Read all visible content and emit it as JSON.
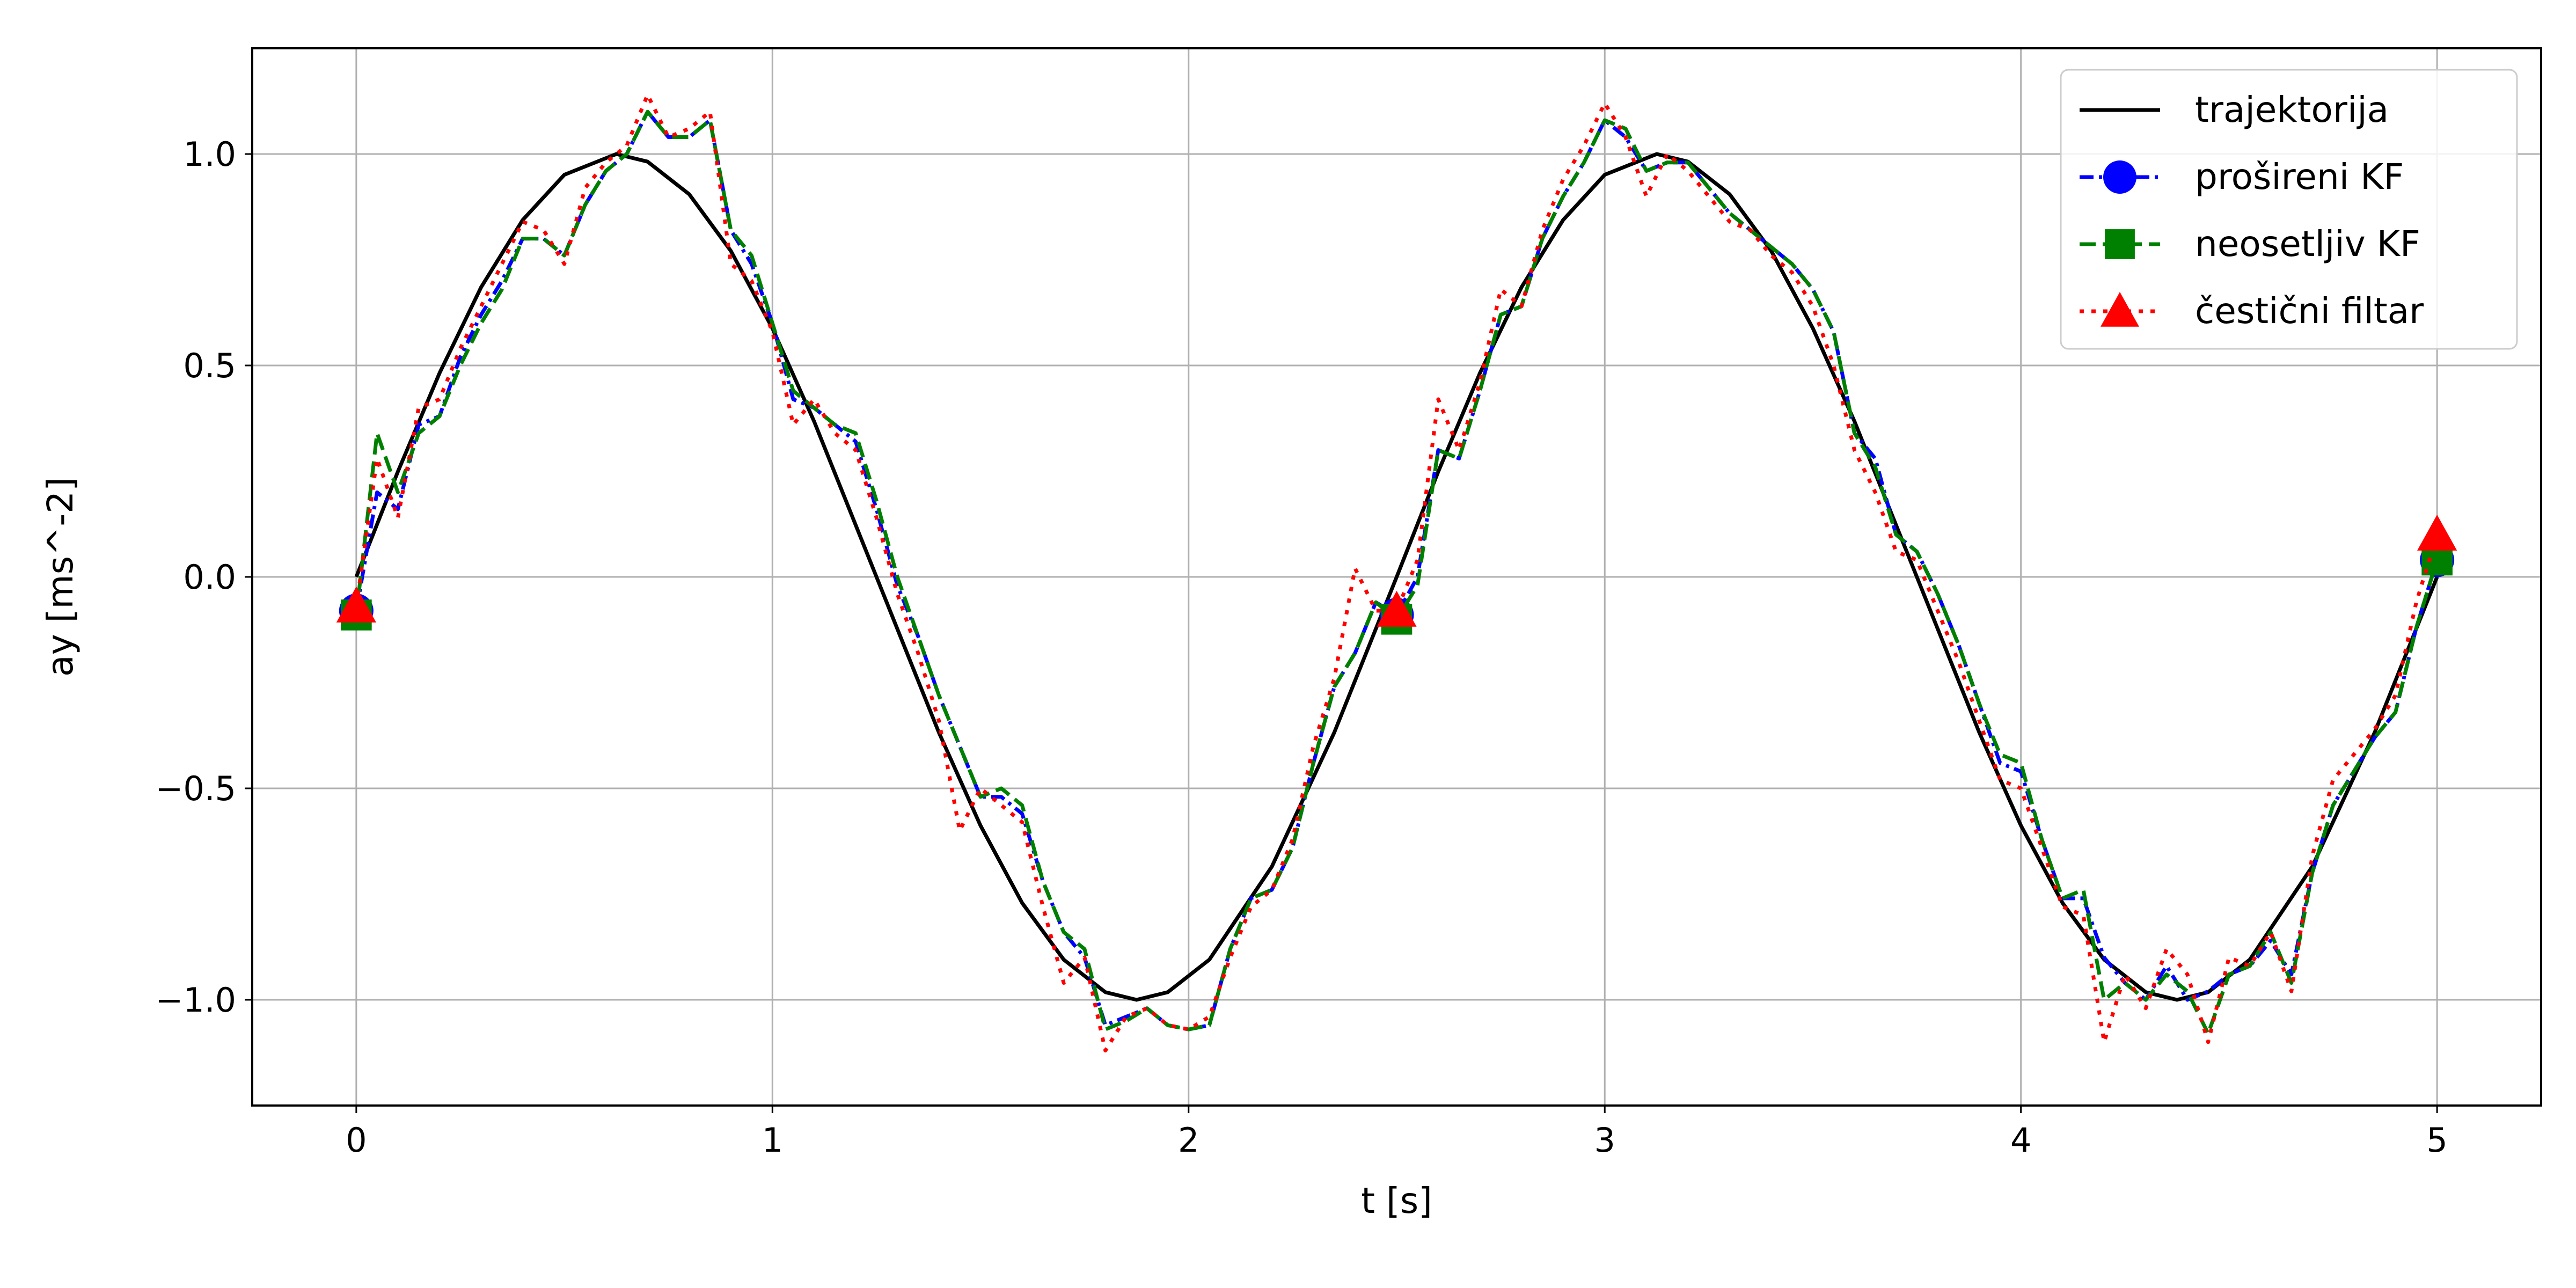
{
  "chart_data": {
    "type": "line",
    "xlabel": "t [s]",
    "ylabel": "ay [ms^-2]",
    "xlim": [
      -0.25,
      5.25
    ],
    "ylim": [
      -1.25,
      1.25
    ],
    "xticks": [
      0,
      1,
      2,
      3,
      4,
      5
    ],
    "xtick_labels": [
      "0",
      "1",
      "2",
      "3",
      "4",
      "5"
    ],
    "yticks": [
      -1.0,
      -0.5,
      0.0,
      0.5,
      1.0
    ],
    "ytick_labels": [
      "−1.0",
      "−0.5",
      "0.0",
      "0.5",
      "1.0"
    ],
    "grid": true,
    "legend_position": "top-right",
    "series": [
      {
        "name": "trajektorija",
        "color": "#000000",
        "style": "solid",
        "marker": "none",
        "x": [
          0,
          0.1,
          0.2,
          0.3,
          0.4,
          0.5,
          0.625,
          0.7,
          0.8,
          0.9,
          1.0,
          1.1,
          1.25,
          1.4,
          1.5,
          1.6,
          1.7,
          1.8,
          1.875,
          1.95,
          2.05,
          2.2,
          2.35,
          2.5,
          2.6,
          2.7,
          2.8,
          2.9,
          3.0,
          3.125,
          3.2,
          3.3,
          3.4,
          3.5,
          3.6,
          3.75,
          3.9,
          4.0,
          4.1,
          4.2,
          4.3,
          4.375,
          4.45,
          4.55,
          4.7,
          4.85,
          5.0
        ],
        "y": [
          0.0,
          0.249,
          0.482,
          0.685,
          0.844,
          0.951,
          1.0,
          0.982,
          0.905,
          0.771,
          0.588,
          0.368,
          0.0,
          -0.368,
          -0.588,
          -0.771,
          -0.905,
          -0.982,
          -1.0,
          -0.982,
          -0.905,
          -0.685,
          -0.368,
          0.0,
          0.249,
          0.482,
          0.685,
          0.844,
          0.951,
          1.0,
          0.982,
          0.905,
          0.771,
          0.588,
          0.368,
          0.0,
          -0.368,
          -0.588,
          -0.771,
          -0.905,
          -0.982,
          -1.0,
          -0.982,
          -0.905,
          -0.685,
          -0.368,
          0.0
        ]
      },
      {
        "name": "prošireni KF",
        "color": "#0000ff",
        "style": "dashdot",
        "marker": "circle",
        "x": [
          0,
          0.05,
          0.1,
          0.15,
          0.2,
          0.25,
          0.3,
          0.35,
          0.4,
          0.45,
          0.5,
          0.55,
          0.6,
          0.65,
          0.7,
          0.75,
          0.8,
          0.85,
          0.9,
          0.95,
          1.0,
          1.05,
          1.1,
          1.15,
          1.2,
          1.25,
          1.3,
          1.35,
          1.4,
          1.45,
          1.5,
          1.55,
          1.6,
          1.65,
          1.7,
          1.75,
          1.8,
          1.85,
          1.9,
          1.95,
          2.0,
          2.05,
          2.1,
          2.15,
          2.2,
          2.25,
          2.3,
          2.35,
          2.4,
          2.45,
          2.5,
          2.55,
          2.6,
          2.65,
          2.7,
          2.75,
          2.8,
          2.85,
          2.9,
          2.95,
          3.0,
          3.05,
          3.1,
          3.15,
          3.2,
          3.25,
          3.3,
          3.35,
          3.4,
          3.45,
          3.5,
          3.55,
          3.6,
          3.65,
          3.7,
          3.75,
          3.8,
          3.85,
          3.9,
          3.95,
          4.0,
          4.05,
          4.1,
          4.15,
          4.2,
          4.25,
          4.3,
          4.35,
          4.4,
          4.45,
          4.5,
          4.55,
          4.6,
          4.65,
          4.7,
          4.75,
          4.8,
          4.85,
          4.9,
          4.95,
          5.0
        ],
        "y": [
          -0.08,
          0.2,
          0.16,
          0.36,
          0.38,
          0.52,
          0.62,
          0.7,
          0.8,
          0.8,
          0.76,
          0.88,
          0.96,
          1.0,
          1.1,
          1.04,
          1.04,
          1.08,
          0.82,
          0.74,
          0.6,
          0.42,
          0.4,
          0.36,
          0.32,
          0.16,
          -0.02,
          -0.14,
          -0.28,
          -0.4,
          -0.52,
          -0.52,
          -0.56,
          -0.72,
          -0.84,
          -0.9,
          -1.06,
          -1.04,
          -1.02,
          -1.06,
          -1.07,
          -1.06,
          -0.88,
          -0.76,
          -0.74,
          -0.64,
          -0.44,
          -0.26,
          -0.18,
          -0.06,
          -0.09,
          0.0,
          0.3,
          0.28,
          0.44,
          0.62,
          0.64,
          0.8,
          0.9,
          0.98,
          1.08,
          1.04,
          0.96,
          0.98,
          0.98,
          0.92,
          0.86,
          0.82,
          0.78,
          0.74,
          0.68,
          0.58,
          0.34,
          0.28,
          0.1,
          0.06,
          -0.04,
          -0.16,
          -0.3,
          -0.44,
          -0.46,
          -0.62,
          -0.76,
          -0.76,
          -0.9,
          -0.96,
          -1.0,
          -0.92,
          -1.0,
          -0.98,
          -0.94,
          -0.92,
          -0.86,
          -0.94,
          -0.7,
          -0.54,
          -0.46,
          -0.38,
          -0.32,
          -0.12,
          0.04
        ]
      },
      {
        "name": "neosetljiv KF",
        "color": "#008000",
        "style": "dashed",
        "marker": "square",
        "x": [
          0,
          0.05,
          0.1,
          0.15,
          0.2,
          0.25,
          0.3,
          0.35,
          0.4,
          0.45,
          0.5,
          0.55,
          0.6,
          0.65,
          0.7,
          0.75,
          0.8,
          0.85,
          0.9,
          0.95,
          1.0,
          1.05,
          1.1,
          1.15,
          1.2,
          1.25,
          1.3,
          1.35,
          1.4,
          1.45,
          1.5,
          1.55,
          1.6,
          1.65,
          1.7,
          1.75,
          1.8,
          1.85,
          1.9,
          1.95,
          2.0,
          2.05,
          2.1,
          2.15,
          2.2,
          2.25,
          2.3,
          2.35,
          2.4,
          2.45,
          2.5,
          2.55,
          2.6,
          2.65,
          2.7,
          2.75,
          2.8,
          2.85,
          2.9,
          2.95,
          3.0,
          3.05,
          3.1,
          3.15,
          3.2,
          3.25,
          3.3,
          3.35,
          3.4,
          3.45,
          3.5,
          3.55,
          3.6,
          3.65,
          3.7,
          3.75,
          3.8,
          3.85,
          3.9,
          3.95,
          4.0,
          4.05,
          4.1,
          4.15,
          4.2,
          4.25,
          4.3,
          4.35,
          4.4,
          4.45,
          4.5,
          4.55,
          4.6,
          4.65,
          4.7,
          4.75,
          4.8,
          4.85,
          4.9,
          4.95,
          5.0
        ],
        "y": [
          -0.09,
          0.34,
          0.2,
          0.34,
          0.38,
          0.5,
          0.6,
          0.68,
          0.8,
          0.8,
          0.76,
          0.88,
          0.96,
          1.0,
          1.1,
          1.04,
          1.04,
          1.08,
          0.82,
          0.76,
          0.6,
          0.44,
          0.4,
          0.36,
          0.34,
          0.18,
          0.0,
          -0.14,
          -0.28,
          -0.4,
          -0.52,
          -0.5,
          -0.54,
          -0.72,
          -0.84,
          -0.88,
          -1.07,
          -1.05,
          -1.02,
          -1.06,
          -1.07,
          -1.06,
          -0.88,
          -0.76,
          -0.74,
          -0.64,
          -0.44,
          -0.26,
          -0.18,
          -0.06,
          -0.1,
          -0.02,
          0.3,
          0.28,
          0.44,
          0.62,
          0.64,
          0.8,
          0.9,
          0.98,
          1.08,
          1.06,
          0.96,
          0.98,
          0.98,
          0.92,
          0.86,
          0.82,
          0.78,
          0.74,
          0.68,
          0.58,
          0.34,
          0.26,
          0.1,
          0.06,
          -0.04,
          -0.16,
          -0.3,
          -0.42,
          -0.44,
          -0.62,
          -0.76,
          -0.74,
          -1.0,
          -0.96,
          -1.0,
          -0.94,
          -0.98,
          -1.08,
          -0.94,
          -0.92,
          -0.84,
          -0.96,
          -0.7,
          -0.54,
          -0.46,
          -0.38,
          -0.32,
          -0.12,
          0.04
        ]
      },
      {
        "name": "čestični filtar",
        "color": "#ff0000",
        "style": "dotted",
        "marker": "triangle",
        "x": [
          0,
          0.05,
          0.1,
          0.15,
          0.2,
          0.25,
          0.3,
          0.35,
          0.4,
          0.45,
          0.5,
          0.55,
          0.6,
          0.65,
          0.7,
          0.75,
          0.8,
          0.85,
          0.9,
          0.95,
          1.0,
          1.05,
          1.1,
          1.15,
          1.2,
          1.25,
          1.3,
          1.35,
          1.4,
          1.45,
          1.5,
          1.55,
          1.6,
          1.65,
          1.7,
          1.75,
          1.8,
          1.85,
          1.9,
          1.95,
          2.0,
          2.05,
          2.1,
          2.15,
          2.2,
          2.25,
          2.3,
          2.35,
          2.4,
          2.45,
          2.5,
          2.55,
          2.6,
          2.65,
          2.7,
          2.75,
          2.8,
          2.85,
          2.9,
          2.95,
          3.0,
          3.05,
          3.1,
          3.15,
          3.2,
          3.25,
          3.3,
          3.35,
          3.4,
          3.45,
          3.5,
          3.55,
          3.6,
          3.65,
          3.7,
          3.75,
          3.8,
          3.85,
          3.9,
          3.95,
          4.0,
          4.05,
          4.1,
          4.15,
          4.2,
          4.25,
          4.3,
          4.35,
          4.4,
          4.45,
          4.5,
          4.55,
          4.6,
          4.65,
          4.7,
          4.75,
          4.8,
          4.85,
          4.9,
          4.95,
          5.0
        ],
        "y": [
          -0.07,
          0.28,
          0.14,
          0.4,
          0.42,
          0.54,
          0.64,
          0.74,
          0.84,
          0.82,
          0.74,
          0.92,
          0.98,
          1.02,
          1.14,
          1.04,
          1.06,
          1.1,
          0.74,
          0.7,
          0.58,
          0.36,
          0.42,
          0.34,
          0.3,
          0.14,
          -0.04,
          -0.18,
          -0.34,
          -0.6,
          -0.5,
          -0.54,
          -0.58,
          -0.78,
          -0.96,
          -0.9,
          -1.12,
          -1.04,
          -1.02,
          -1.06,
          -1.07,
          -1.04,
          -0.9,
          -0.78,
          -0.74,
          -0.62,
          -0.4,
          -0.24,
          0.02,
          -0.08,
          -0.08,
          0.04,
          0.42,
          0.3,
          0.46,
          0.68,
          0.64,
          0.82,
          0.94,
          1.02,
          1.12,
          1.04,
          0.9,
          1.0,
          0.96,
          0.9,
          0.84,
          0.82,
          0.76,
          0.72,
          0.64,
          0.5,
          0.3,
          0.2,
          0.06,
          0.04,
          -0.08,
          -0.2,
          -0.34,
          -0.48,
          -0.5,
          -0.64,
          -0.78,
          -0.8,
          -1.1,
          -0.94,
          -1.02,
          -0.88,
          -0.94,
          -1.1,
          -0.9,
          -0.92,
          -0.84,
          -0.98,
          -0.66,
          -0.48,
          -0.42,
          -0.36,
          -0.28,
          -0.06,
          0.1
        ]
      }
    ]
  }
}
